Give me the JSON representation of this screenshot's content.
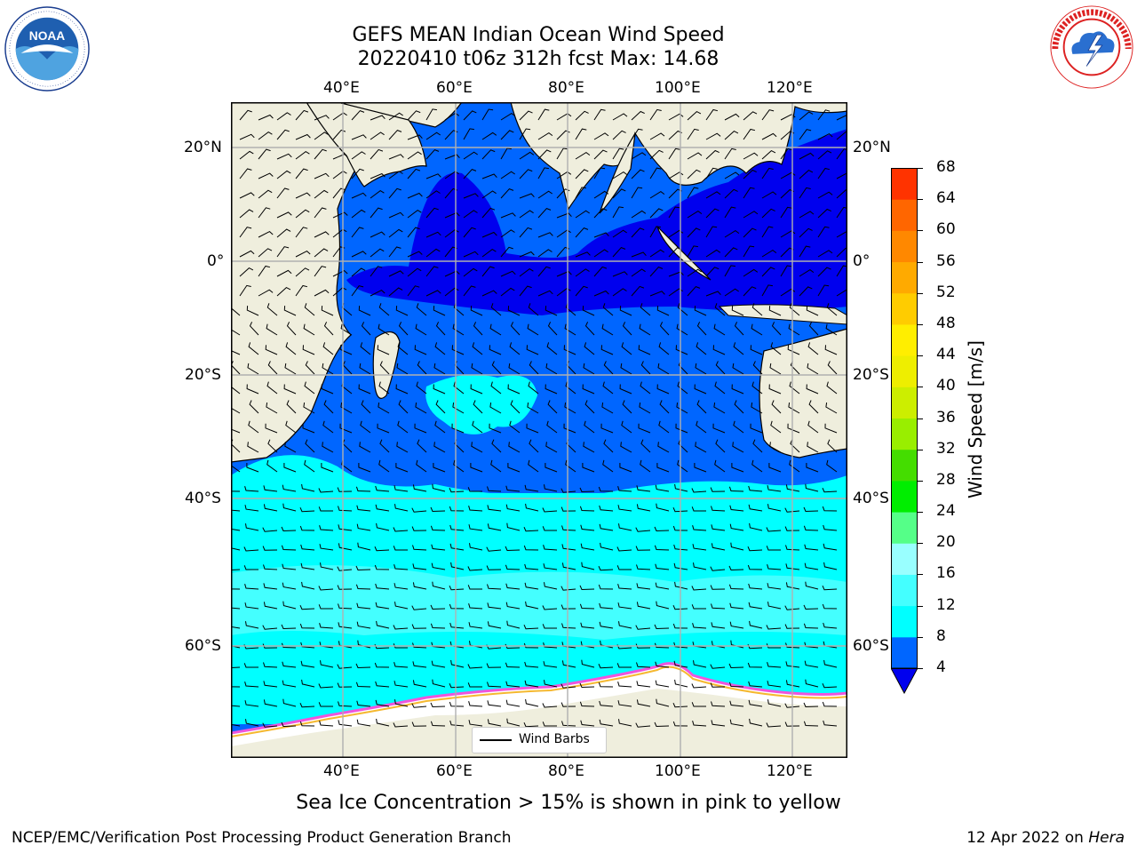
{
  "title": {
    "line1": "GEFS MEAN Indian Ocean Wind Speed",
    "line2": "20220410 t06z 312h fcst   Max: 14.68"
  },
  "logos": {
    "left": {
      "name": "noaa-logo",
      "text": "NOAA",
      "ring_text": "NATIONAL OCEANIC AND ATMOSPHERIC ADMINISTRATION · U.S. DEPARTMENT OF COMMERCE"
    },
    "right": {
      "name": "nws-logo",
      "ring_text": "NATIONAL WEATHER SERVICE"
    }
  },
  "map": {
    "lon_labels": [
      "40°E",
      "60°E",
      "80°E",
      "100°E",
      "120°E"
    ],
    "lat_labels": [
      "20°N",
      "0°",
      "20°S",
      "40°S",
      "60°S"
    ],
    "gridlines": true,
    "legend": {
      "label": "Wind Barbs",
      "placement": "bottom-center"
    },
    "colors": {
      "land": "#efeedd",
      "ice": "#ffffff",
      "ice_edge": "#ee55dd",
      "ice_yellow": "#f5b830"
    }
  },
  "colorbar": {
    "label": "Wind Speed [m/s]",
    "ticks": [
      "4",
      "8",
      "12",
      "16",
      "20",
      "24",
      "28",
      "32",
      "36",
      "40",
      "44",
      "48",
      "52",
      "56",
      "60",
      "64",
      "68"
    ],
    "colors": [
      "#0066ff",
      "#00ffff",
      "#44ffff",
      "#99ffff",
      "#55ff88",
      "#00ee00",
      "#44dd00",
      "#99ee00",
      "#ccee00",
      "#eeee00",
      "#ffee00",
      "#ffcc00",
      "#ffaa00",
      "#ff8800",
      "#ff6600",
      "#ff3300"
    ],
    "extend_color": "#0000ee"
  },
  "note": "Sea Ice Concentration > 15% is shown in pink to yellow",
  "footer": {
    "left": "NCEP/EMC/Verification Post Processing Product Generation Branch",
    "right_date": "12 Apr 2022 on",
    "right_host": "Hera"
  }
}
